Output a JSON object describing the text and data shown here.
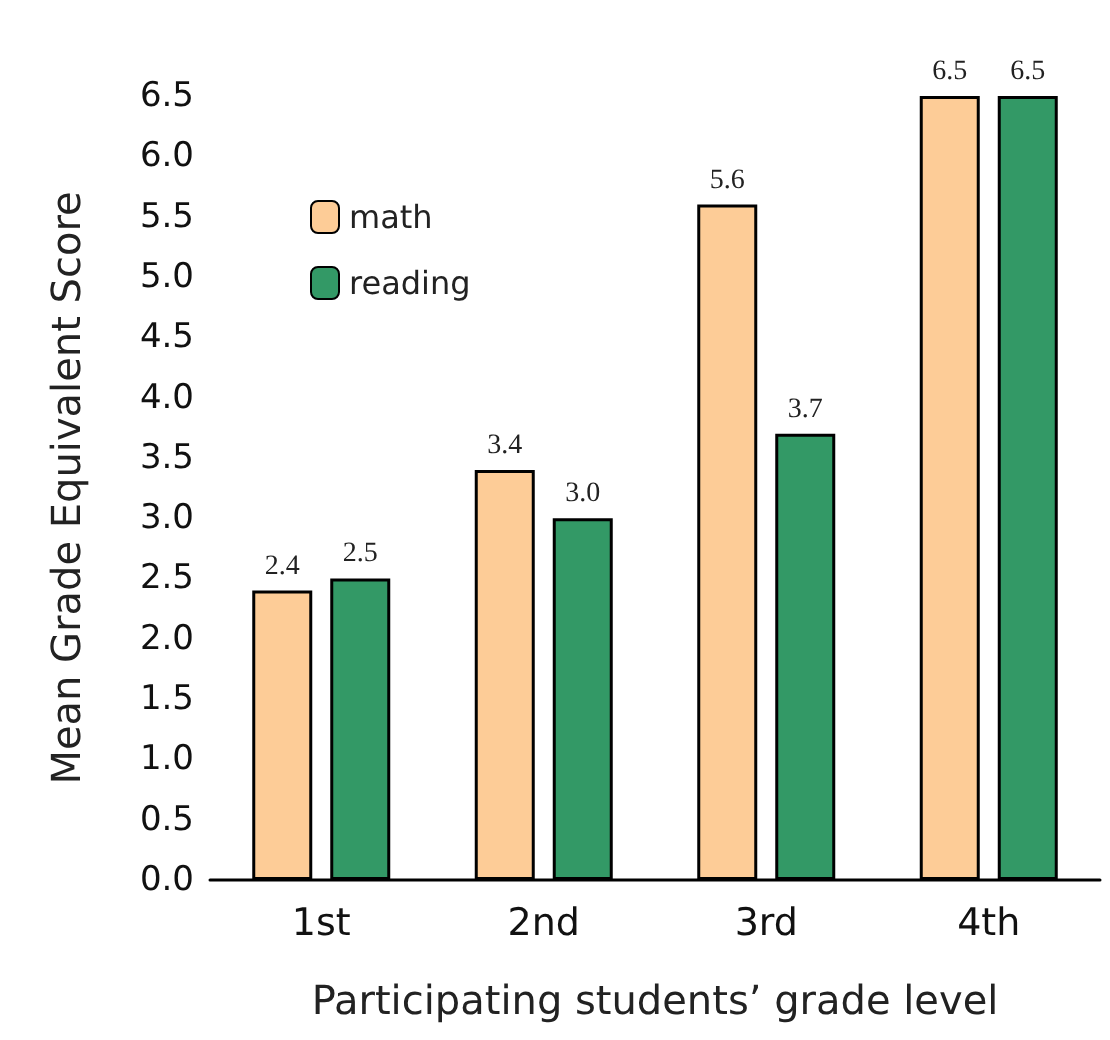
{
  "chart_data": {
    "type": "bar",
    "xlabel": "Participating students’ grade level",
    "ylabel": "Mean Grade Equivalent Score",
    "categories": [
      "1st",
      "2nd",
      "3rd",
      "4th"
    ],
    "series": [
      {
        "name": "math",
        "color": "#fdcc97",
        "values": [
          2.4,
          3.4,
          5.6,
          6.5
        ],
        "value_labels": [
          "2.4",
          "3.4",
          "5.6",
          "6.5"
        ]
      },
      {
        "name": "reading",
        "color": "#339966",
        "values": [
          2.5,
          3.0,
          3.7,
          6.5
        ],
        "value_labels": [
          "2.5",
          "3.0",
          "3.7",
          "6.5"
        ]
      }
    ],
    "ylim": [
      0,
      6.5
    ],
    "yticks": [
      {
        "value": 0,
        "label": "0.0"
      },
      {
        "value": 0.5,
        "label": "0.5"
      },
      {
        "value": 1,
        "label": "1.0"
      },
      {
        "value": 1.5,
        "label": "1.5"
      },
      {
        "value": 2,
        "label": "2.0"
      },
      {
        "value": 2.5,
        "label": "2.5"
      },
      {
        "value": 3,
        "label": "3.0"
      },
      {
        "value": 3.5,
        "label": "3.5"
      },
      {
        "value": 4,
        "label": "4.0"
      },
      {
        "value": 4.5,
        "label": "4.5"
      },
      {
        "value": 5,
        "label": "5.0"
      },
      {
        "value": 5.5,
        "label": "5.5"
      },
      {
        "value": 6,
        "label": "6.0"
      },
      {
        "value": 6.5,
        "label": "6.5"
      }
    ],
    "grid": false,
    "legend": "top left"
  }
}
